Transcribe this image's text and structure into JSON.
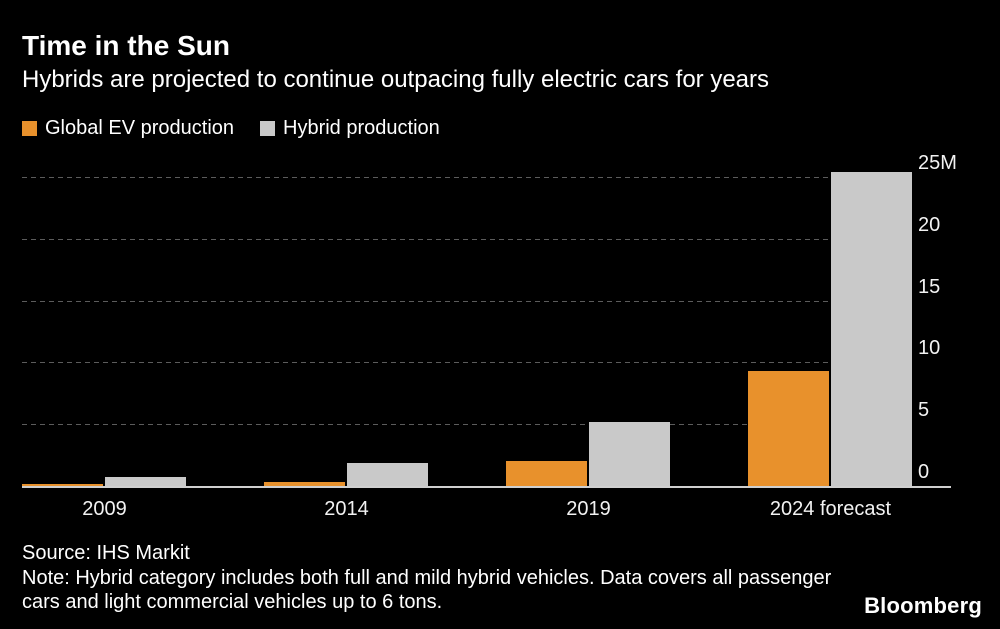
{
  "header": {
    "title": "Time in the Sun",
    "subtitle": "Hybrids are projected to continue outpacing fully electric cars for years"
  },
  "chart_data": {
    "type": "bar",
    "title": "Time in the Sun",
    "subtitle": "Hybrids are projected to continue outpacing fully electric cars for years",
    "categories": [
      "2009",
      "2014",
      "2019",
      "2024 forecast"
    ],
    "series": [
      {
        "name": "Global EV production",
        "color": "#E8912C",
        "values": [
          0.2,
          0.3,
          2.0,
          9.3
        ]
      },
      {
        "name": "Hybrid production",
        "color": "#C9C9C9",
        "values": [
          0.7,
          1.9,
          5.2,
          25.4
        ]
      }
    ],
    "unit": "M vehicles",
    "xlabel": "",
    "ylabel": "",
    "ylim": [
      0,
      25
    ],
    "yticks": [
      0,
      5,
      10,
      15,
      20,
      25
    ],
    "ytick_labels": [
      "0",
      "5",
      "10",
      "15",
      "20",
      "25M"
    ],
    "grid": "horizontal-dashed",
    "legend_position": "top-left",
    "y_axis_side": "right",
    "background": "#000000"
  },
  "footer": {
    "source": "Source: IHS Markit",
    "note": "Note: Hybrid category includes both full and mild hybrid vehicles. Data covers all passenger cars and light commercial vehicles up to 6 tons.",
    "brand": "Bloomberg"
  }
}
